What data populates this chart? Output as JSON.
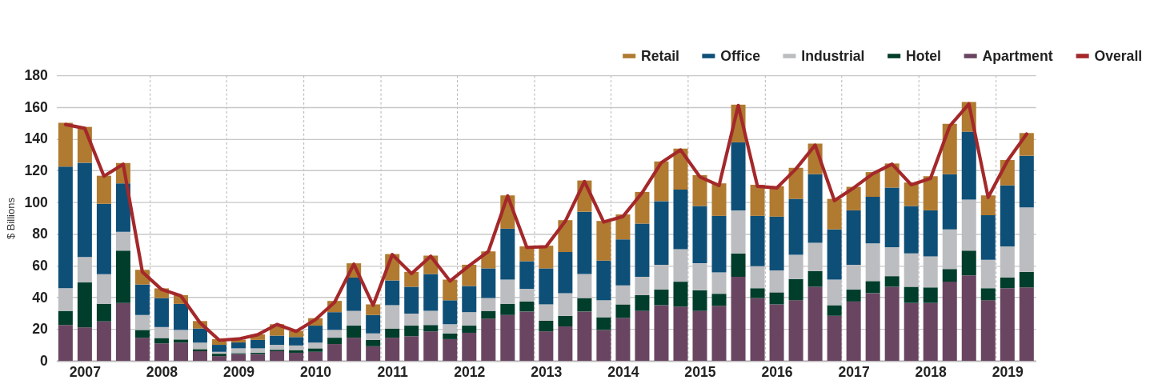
{
  "chart_data": {
    "type": "bar",
    "stacked": true,
    "ylabel": "$ Billions",
    "ylim": [
      0,
      180
    ],
    "yticks": [
      0,
      20,
      40,
      60,
      80,
      100,
      120,
      140,
      160,
      180
    ],
    "grid": true,
    "legend": "top right",
    "categories": [
      null,
      "2007",
      null,
      null,
      null,
      "2008",
      null,
      null,
      null,
      "2009",
      null,
      null,
      null,
      "2010",
      null,
      null,
      null,
      "2011",
      null,
      null,
      null,
      "2012",
      null,
      null,
      null,
      "2013",
      null,
      null,
      null,
      "2014",
      null,
      null,
      null,
      "2015",
      null,
      null,
      null,
      "2016",
      null,
      null,
      null,
      "2017",
      null,
      null,
      null,
      "2018",
      null,
      null,
      null,
      "2019",
      null
    ],
    "series": [
      {
        "name": "Apartment",
        "color": "#6a4561",
        "values": [
          22.6,
          21.1,
          24.9,
          36.5,
          14.6,
          11.0,
          11.5,
          6.1,
          3.0,
          4.3,
          4.3,
          6.1,
          5.1,
          5.7,
          10.6,
          14.6,
          9.2,
          14.6,
          15.5,
          18.6,
          13.7,
          17.7,
          26.6,
          28.9,
          31.1,
          18.6,
          21.7,
          31.1,
          19.5,
          27.1,
          31.5,
          35.1,
          34.2,
          31.5,
          34.7,
          53.0,
          39.6,
          35.6,
          38.2,
          46.7,
          28.4,
          37.4,
          42.7,
          46.7,
          36.5,
          36.5,
          49.9,
          53.9,
          38.2,
          45.8,
          46.3
        ]
      },
      {
        "name": "Hotel",
        "color": "#013d2b",
        "values": [
          8.9,
          28.3,
          11.1,
          33.0,
          4.9,
          3.4,
          2.0,
          1.3,
          1.5,
          0.6,
          0.9,
          0.9,
          1.7,
          2.2,
          4.0,
          7.6,
          4.0,
          5.8,
          6.7,
          4.0,
          3.6,
          4.5,
          4.9,
          7.1,
          6.3,
          6.7,
          6.7,
          8.5,
          8.0,
          8.5,
          9.9,
          9.8,
          15.7,
          13.0,
          7.6,
          14.7,
          6.2,
          7.6,
          13.4,
          9.8,
          6.7,
          7.5,
          7.6,
          6.7,
          10.2,
          9.8,
          8.0,
          15.6,
          7.6,
          6.7,
          9.8
        ]
      },
      {
        "name": "Industrial",
        "color": "#bcbdc0",
        "values": [
          14.3,
          16.1,
          18.6,
          11.9,
          9.4,
          6.9,
          6.0,
          4.1,
          1.2,
          3.0,
          2.7,
          3.1,
          2.9,
          3.6,
          4.9,
          9.3,
          4.1,
          14.7,
          7.6,
          8.9,
          5.8,
          8.5,
          8.1,
          15.2,
          8.0,
          10.3,
          14.3,
          15.2,
          10.7,
          12.0,
          11.6,
          15.7,
          20.5,
          17.0,
          13.4,
          27.2,
          13.9,
          13.8,
          15.2,
          17.9,
          16.1,
          15.7,
          23.7,
          18.3,
          21.0,
          19.6,
          25.0,
          32.1,
          17.9,
          19.7,
          40.6
        ]
      },
      {
        "name": "Office",
        "color": "#0e4f78",
        "values": [
          76.7,
          59.4,
          44.4,
          30.5,
          19.2,
          18.3,
          16.4,
          8.9,
          4.4,
          3.7,
          5.3,
          5.8,
          5.3,
          10.7,
          11.2,
          21.0,
          11.6,
          15.6,
          16.9,
          23.3,
          15.1,
          16.5,
          18.7,
          32.1,
          17.4,
          22.7,
          25.9,
          39.2,
          25.0,
          29.0,
          33.5,
          40.1,
          37.5,
          36.1,
          35.7,
          42.9,
          31.7,
          33.9,
          35.3,
          43.3,
          31.7,
          34.3,
          29.4,
          37.5,
          29.9,
          29.0,
          34.8,
          42.9,
          28.1,
          38.4,
          32.6
        ]
      },
      {
        "name": "Retail",
        "color": "#b07a30",
        "values": [
          27.6,
          22.6,
          17.7,
          12.8,
          9.3,
          6.1,
          5.5,
          4.7,
          3.6,
          1.8,
          3.5,
          7.2,
          3.9,
          4.7,
          7.1,
          9.0,
          6.7,
          16.6,
          9.4,
          11.6,
          13.0,
          13.4,
          10.7,
          21.0,
          9.4,
          14.3,
          20.1,
          19.7,
          25.0,
          15.7,
          20.0,
          25.0,
          25.9,
          19.5,
          20.5,
          23.7,
          19.6,
          19.2,
          19.6,
          19.2,
          19.2,
          14.8,
          15.6,
          15.2,
          14.8,
          21.5,
          31.7,
          18.7,
          12.5,
          16.0,
          14.3
        ]
      },
      {
        "name": "Overall",
        "type": "line",
        "color": "#a4282a",
        "line_style": "solid",
        "marker": "none",
        "values": [
          149,
          146.6,
          116.4,
          124,
          56,
          45,
          41,
          24,
          13,
          13.8,
          16.5,
          23,
          18.6,
          26,
          37,
          61,
          35,
          67,
          55,
          66,
          50.3,
          60,
          69,
          104,
          71.5,
          72,
          88,
          113,
          87.5,
          91,
          106,
          125,
          133,
          116,
          110.5,
          161,
          110,
          109,
          121,
          136,
          101,
          109,
          118,
          124,
          111,
          115,
          148,
          162,
          103,
          126,
          143
        ]
      }
    ]
  }
}
